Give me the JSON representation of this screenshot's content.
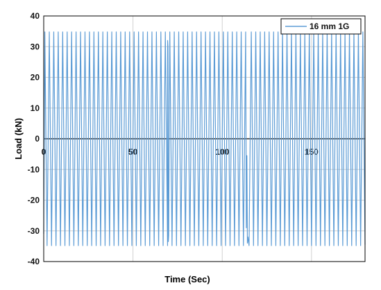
{
  "chart_data": {
    "type": "line",
    "title": "",
    "xlabel": "Time (Sec)",
    "ylabel": "Load (kN)",
    "xlim": [
      0,
      180
    ],
    "ylim": [
      -40,
      40
    ],
    "x_ticks": [
      0,
      50,
      100,
      150
    ],
    "y_ticks": [
      40,
      30,
      20,
      10,
      0,
      -10,
      -20,
      -30,
      -40
    ],
    "x_tick_labels": [
      "0",
      "50",
      "100",
      "150"
    ],
    "y_tick_labels": [
      "40",
      "30",
      "20",
      "10",
      "0",
      "-10",
      "-20",
      "-30",
      "-40"
    ],
    "grid": true,
    "legend_position": "top-right",
    "series": [
      {
        "name": "16 mm 1G",
        "color": "#5b9bd5",
        "signal": {
          "form": "cyclic triangular",
          "amplitude": 34.8,
          "period": 2.5,
          "start": 0,
          "end": 180,
          "start_value": -31,
          "end_value": -34.5
        },
        "disturbances": [
          {
            "t_start": 69.4,
            "t_end": 70.0,
            "values": [
              32,
              30,
              -33.5,
              -31.5
            ]
          },
          {
            "t_start": 113.5,
            "t_end": 114.4,
            "values": [
              -29,
              -5.5,
              -34,
              -32
            ]
          }
        ]
      }
    ]
  }
}
